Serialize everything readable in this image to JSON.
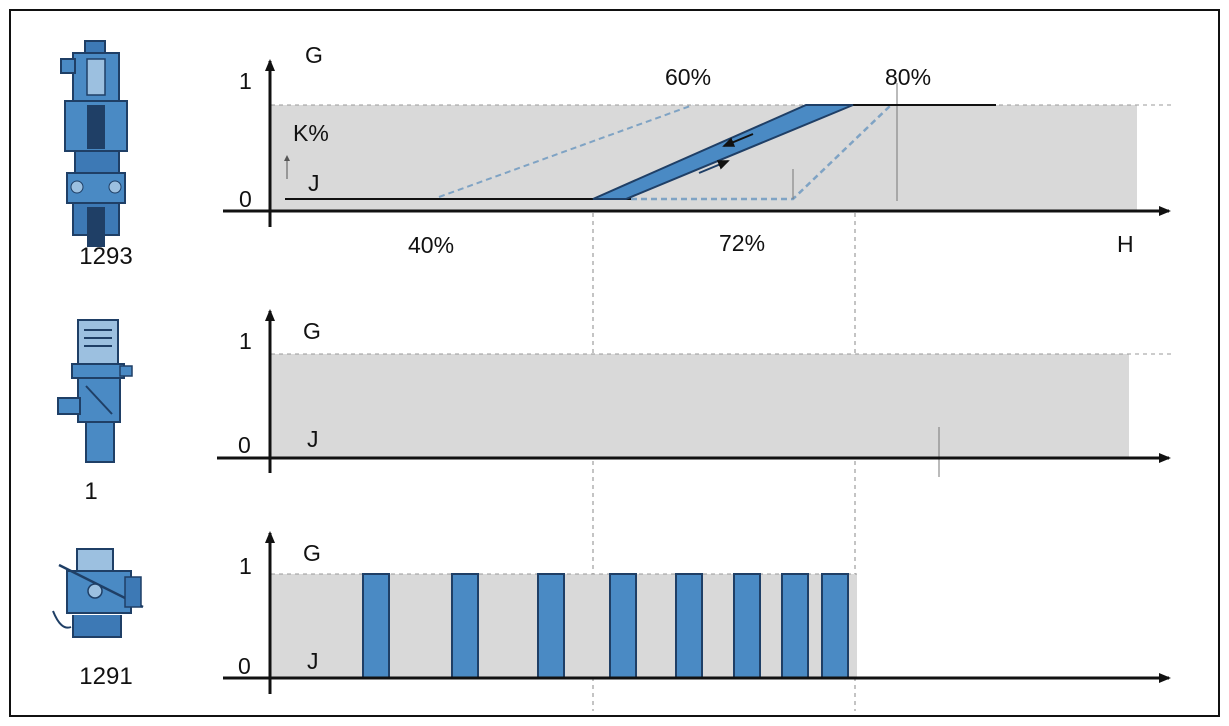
{
  "colors": {
    "blue_fill": "#4a8ac4",
    "blue_dark": "#1f3f66",
    "blue_dashed": "#7fa3c4",
    "gray_fill": "#d9d9d9",
    "axis": "#111111"
  },
  "components": [
    {
      "id": "1293",
      "label": "1293",
      "icon": "valve-assembly-icon"
    },
    {
      "id": "1",
      "label": "1",
      "icon": "sensor-unit-icon"
    },
    {
      "id": "1291",
      "label": "1291",
      "icon": "actuator-mechanism-icon"
    }
  ],
  "charts": [
    {
      "y_label": "G",
      "y_tick_high": "1",
      "y_tick_low": "0",
      "baseline_label": "J",
      "x_label": "H",
      "amplitude_label": "K%",
      "percent_labels": [
        "40%",
        "60%",
        "72%",
        "80%"
      ]
    },
    {
      "y_label": "G",
      "y_tick_high": "1",
      "y_tick_low": "0",
      "baseline_label": "J"
    },
    {
      "y_label": "G",
      "y_tick_high": "1",
      "y_tick_low": "0",
      "baseline_label": "J",
      "pulse_count": 8
    }
  ]
}
